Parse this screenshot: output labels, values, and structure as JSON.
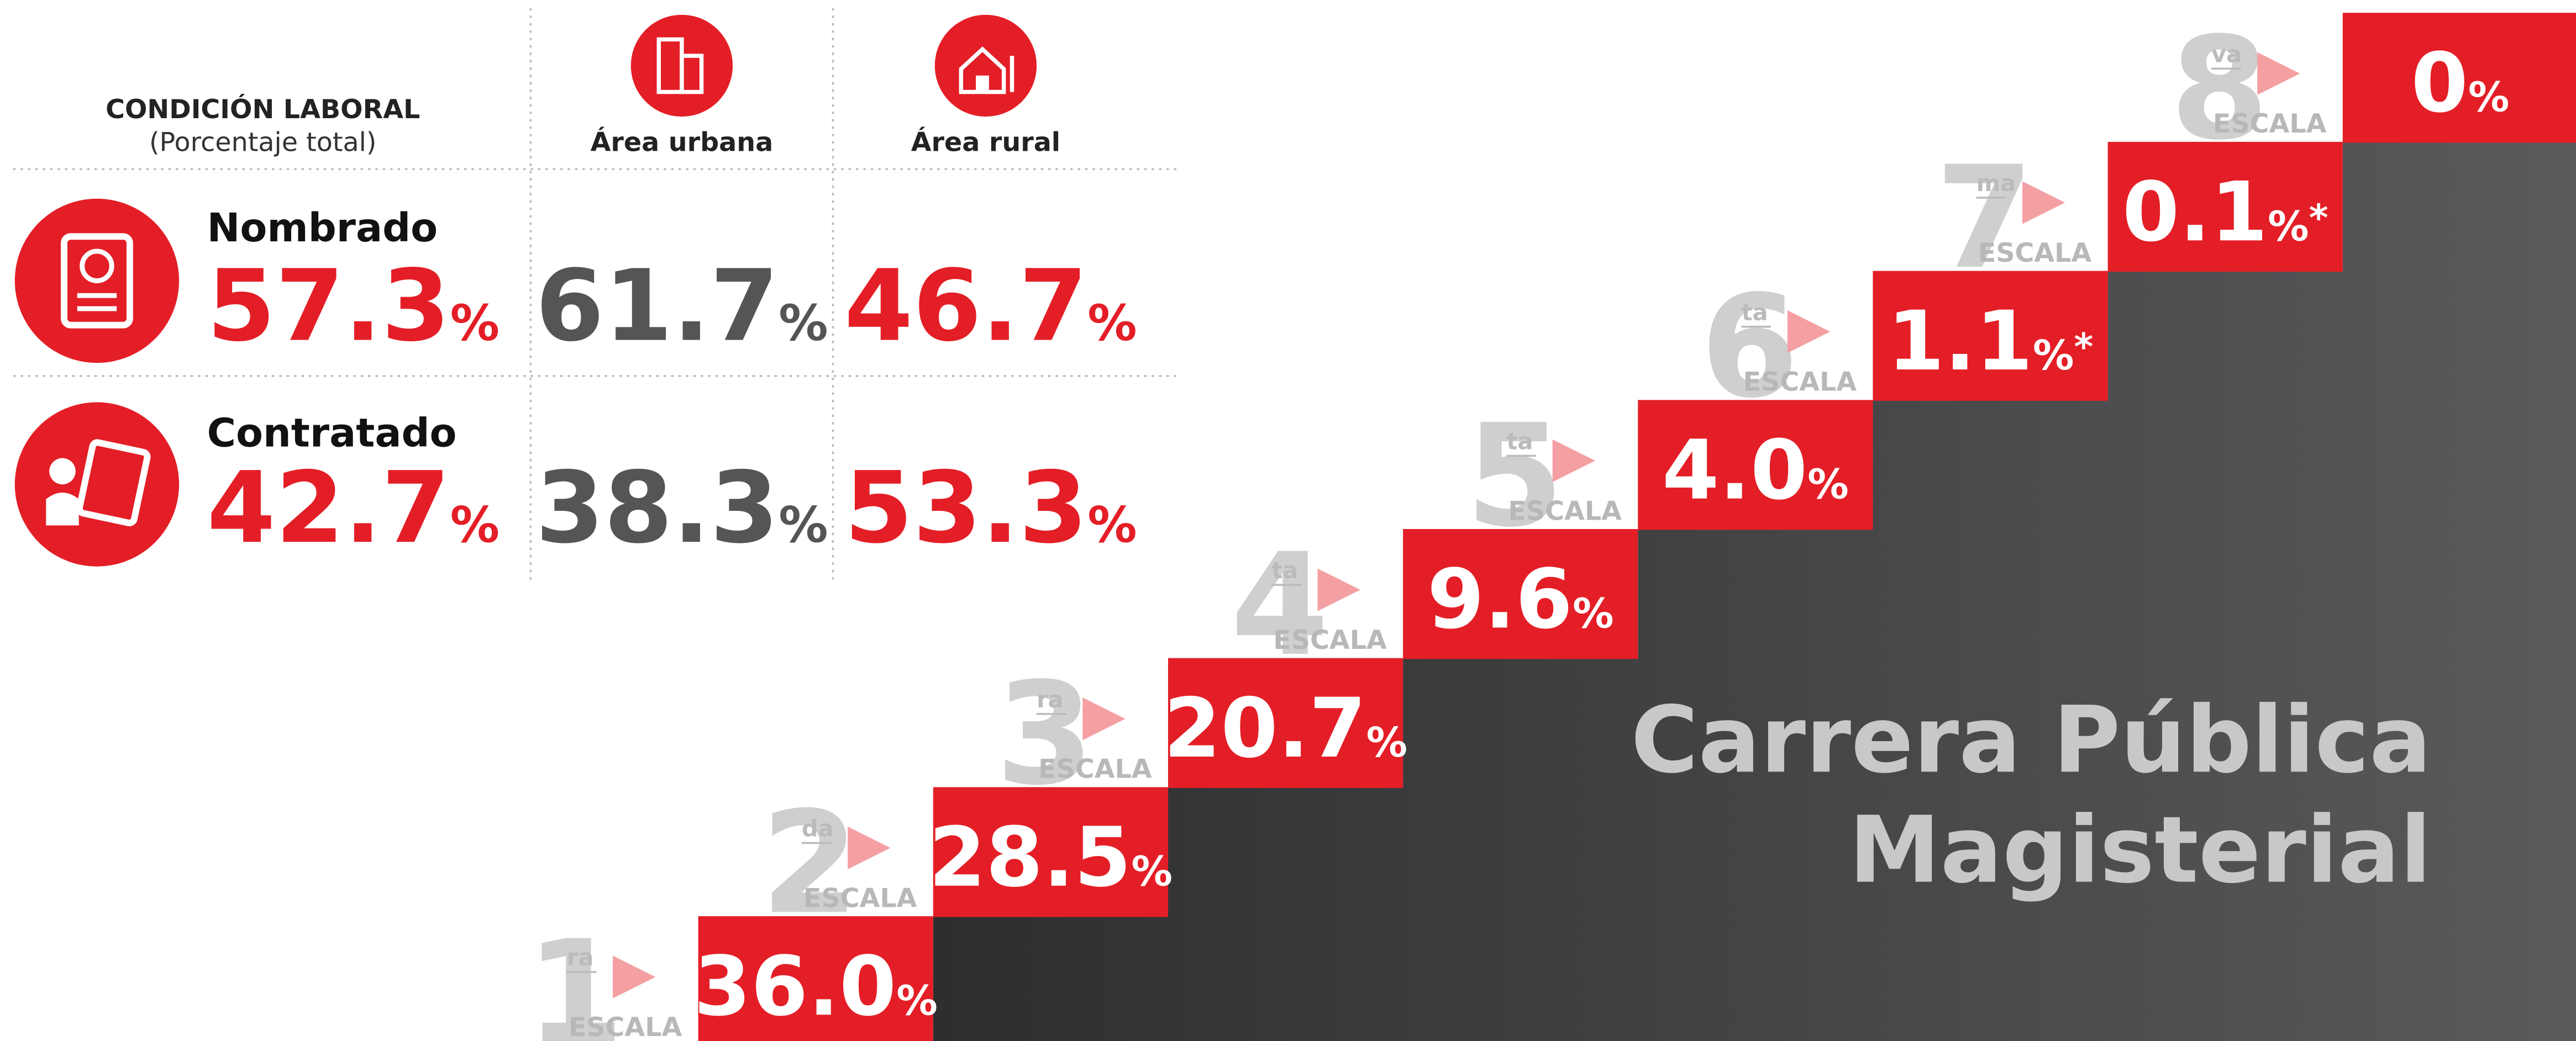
{
  "table": {
    "header": {
      "title": "CONDICIÓN LABORAL",
      "subtitle": "(Porcentaje total)",
      "columns": [
        "Área urbana",
        "Área rural"
      ]
    },
    "rows": [
      {
        "label": "Nombrado",
        "total": "57.3",
        "urban": "61.7",
        "rural": "46.7"
      },
      {
        "label": "Contratado",
        "total": "42.7",
        "urban": "38.3",
        "rural": "53.3"
      }
    ]
  },
  "unit": "%",
  "stairs": {
    "title_lines": [
      "Carrera Pública",
      "Magisterial"
    ],
    "word": "ESCALA",
    "steps": [
      {
        "number": "1",
        "suffix": "ra",
        "value": "36.0"
      },
      {
        "number": "2",
        "suffix": "da",
        "value": "28.5"
      },
      {
        "number": "3",
        "suffix": "ra",
        "value": "20.7"
      },
      {
        "number": "4",
        "suffix": "ta",
        "value": "9.6"
      },
      {
        "number": "5",
        "suffix": "ta",
        "value": "4.0"
      },
      {
        "number": "6",
        "suffix": "ta",
        "value": "1.1",
        "note": "*"
      },
      {
        "number": "7",
        "suffix": "ma",
        "value": "0.1",
        "note": "*"
      },
      {
        "number": "8",
        "suffix": "va",
        "value": "0"
      }
    ]
  }
}
